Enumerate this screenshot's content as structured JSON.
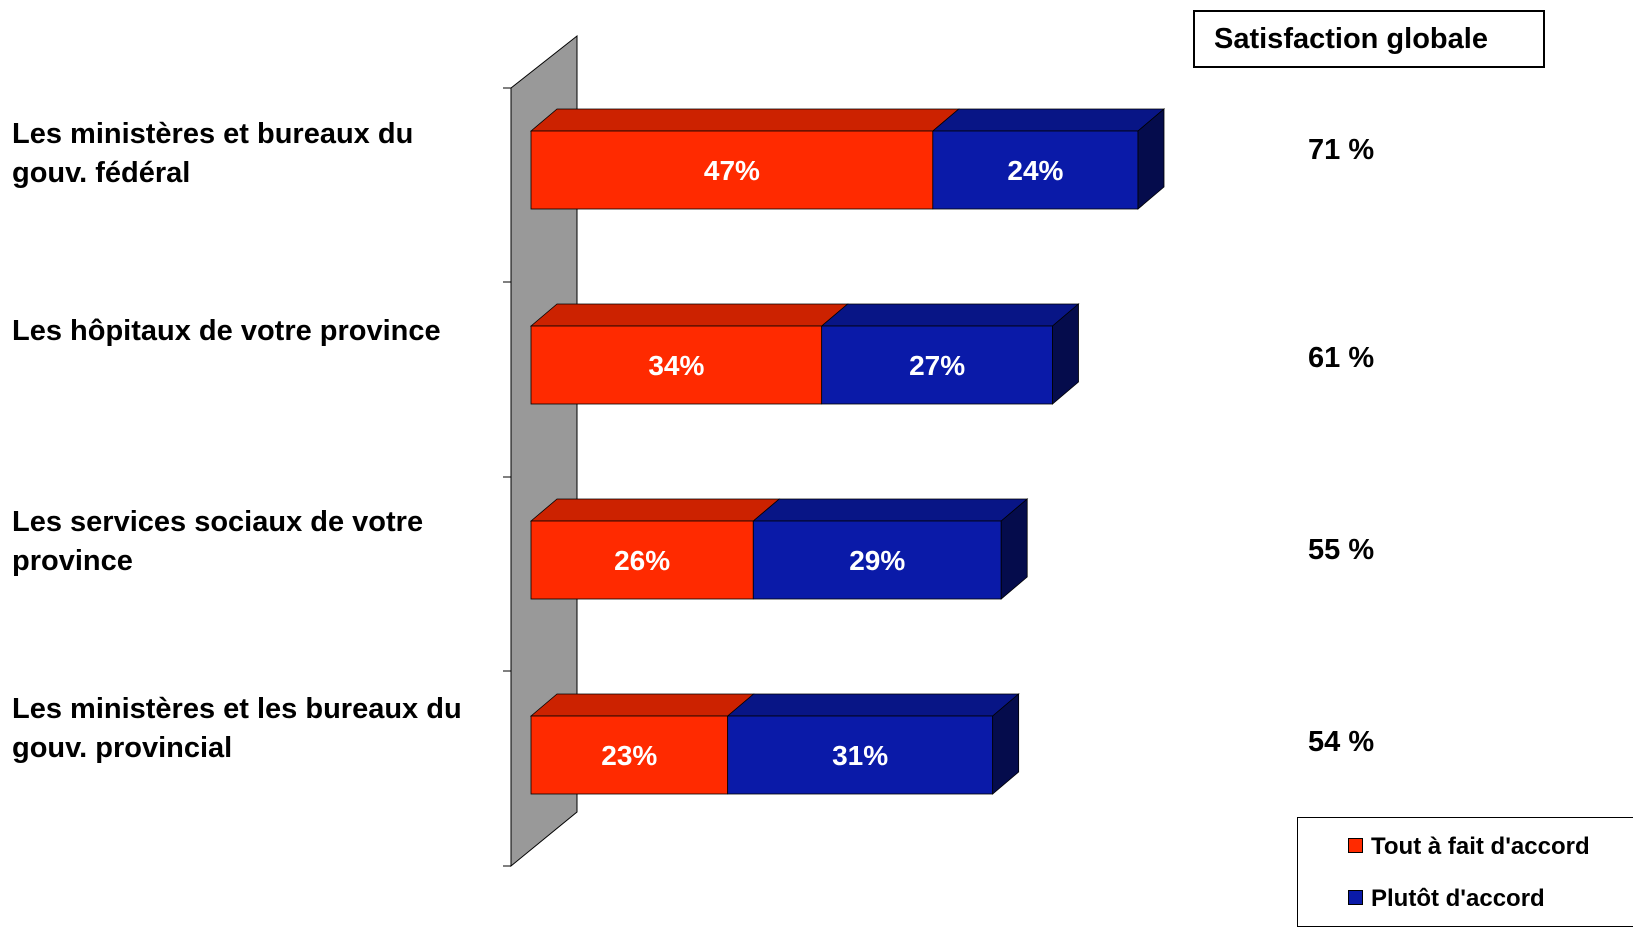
{
  "chart_data": {
    "type": "bar",
    "orientation": "horizontal",
    "stacked": true,
    "style": "3d",
    "categories": [
      "Les ministères et bureaux du gouv. fédéral",
      "Les hôpitaux de votre province",
      "Les services sociaux de votre province",
      "Les ministères et les bureaux du gouv. provincial"
    ],
    "series": [
      {
        "name": "Tout à fait d'accord",
        "values": [
          47,
          34,
          26,
          23
        ],
        "labels": [
          "47%",
          "34%",
          "26%",
          "23%"
        ],
        "color": "#FF2A00"
      },
      {
        "name": "Plutôt d'accord",
        "values": [
          24,
          27,
          29,
          31
        ],
        "labels": [
          "24%",
          "27%",
          "29%",
          "31%"
        ],
        "color": "#0A1AA8"
      }
    ],
    "totals_header": "Satisfaction globale",
    "totals": [
      "71 %",
      "61 %",
      "55 %",
      "54 %"
    ],
    "xlim": [
      0,
      71
    ],
    "legend_position": "bottom-right",
    "grid": false
  }
}
